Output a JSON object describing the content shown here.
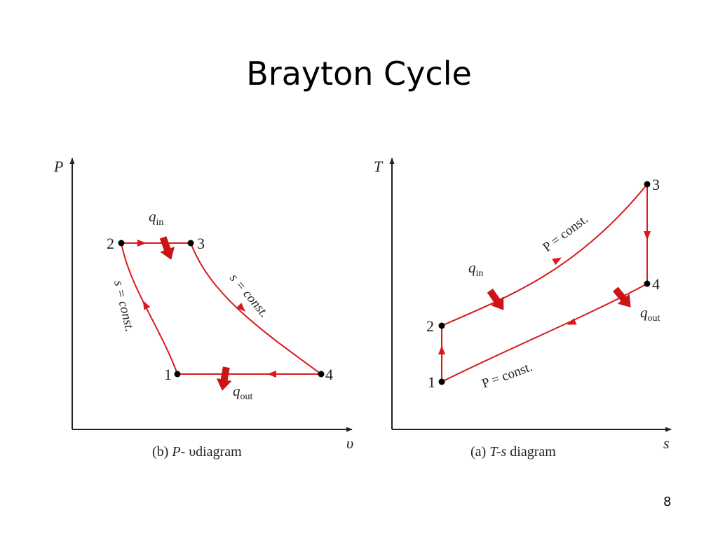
{
  "title": "Brayton Cycle",
  "slide_number": "8",
  "colors": {
    "process": "#d9191c",
    "heat_arrow": "#cc1417",
    "axis": "#222222",
    "point": "#000000"
  },
  "pv_diagram": {
    "y_axis_label": "P",
    "x_axis_label": "υ",
    "caption_prefix": "(b) ",
    "caption_var": "P",
    "caption_rest": "- υdiagram",
    "points": {
      "p1": "1",
      "p2": "2",
      "p3": "3",
      "p4": "4"
    },
    "compression_label": "s = const.",
    "expansion_label": "s = const.",
    "q_in": {
      "symbol": "q",
      "subscript": "in"
    },
    "q_out": {
      "symbol": "q",
      "subscript": "out"
    }
  },
  "ts_diagram": {
    "y_axis_label": "T",
    "x_axis_label": "s",
    "caption_prefix": "(a) ",
    "caption_var": "T-s",
    "caption_rest": " diagram",
    "points": {
      "p1": "1",
      "p2": "2",
      "p3": "3",
      "p4": "4"
    },
    "upper_isobar_label": "P = const.",
    "lower_isobar_label": "P = const.",
    "q_in": {
      "symbol": "q",
      "subscript": "in"
    },
    "q_out": {
      "symbol": "q",
      "subscript": "out"
    }
  }
}
